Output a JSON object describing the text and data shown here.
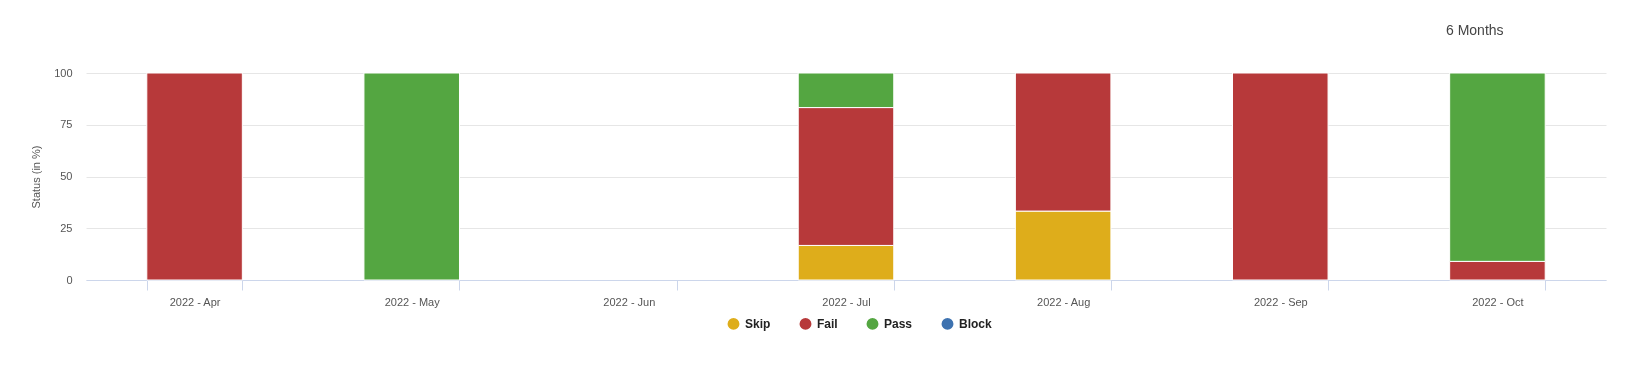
{
  "chart_data": {
    "type": "bar",
    "stacked": true,
    "ylabel": "Status (in %)",
    "categories": [
      "2022 - Apr",
      "2022 - May",
      "2022 - Jun",
      "2022 - Jul",
      "2022 - Aug",
      "2022 - Sep",
      "2022 - Oct"
    ],
    "series": [
      {
        "name": "Skip",
        "color": "#dead1b",
        "values": [
          null,
          null,
          null,
          16.7,
          33.3,
          null,
          null
        ]
      },
      {
        "name": "Fail",
        "color": "#b7393a",
        "values": [
          100,
          null,
          null,
          66.6,
          66.7,
          100,
          9
        ]
      },
      {
        "name": "Pass",
        "color": "#54a641",
        "values": [
          null,
          100,
          null,
          16.7,
          null,
          null,
          91
        ]
      },
      {
        "name": "Block",
        "color": "#3d72b0",
        "values": [
          null,
          null,
          null,
          null,
          null,
          null,
          null
        ]
      }
    ],
    "ylim": [
      0,
      100
    ],
    "yticks": [
      0,
      25,
      50,
      75,
      100
    ],
    "grid": "y",
    "legend": "bottom",
    "annotations": [
      "6 Months"
    ]
  }
}
